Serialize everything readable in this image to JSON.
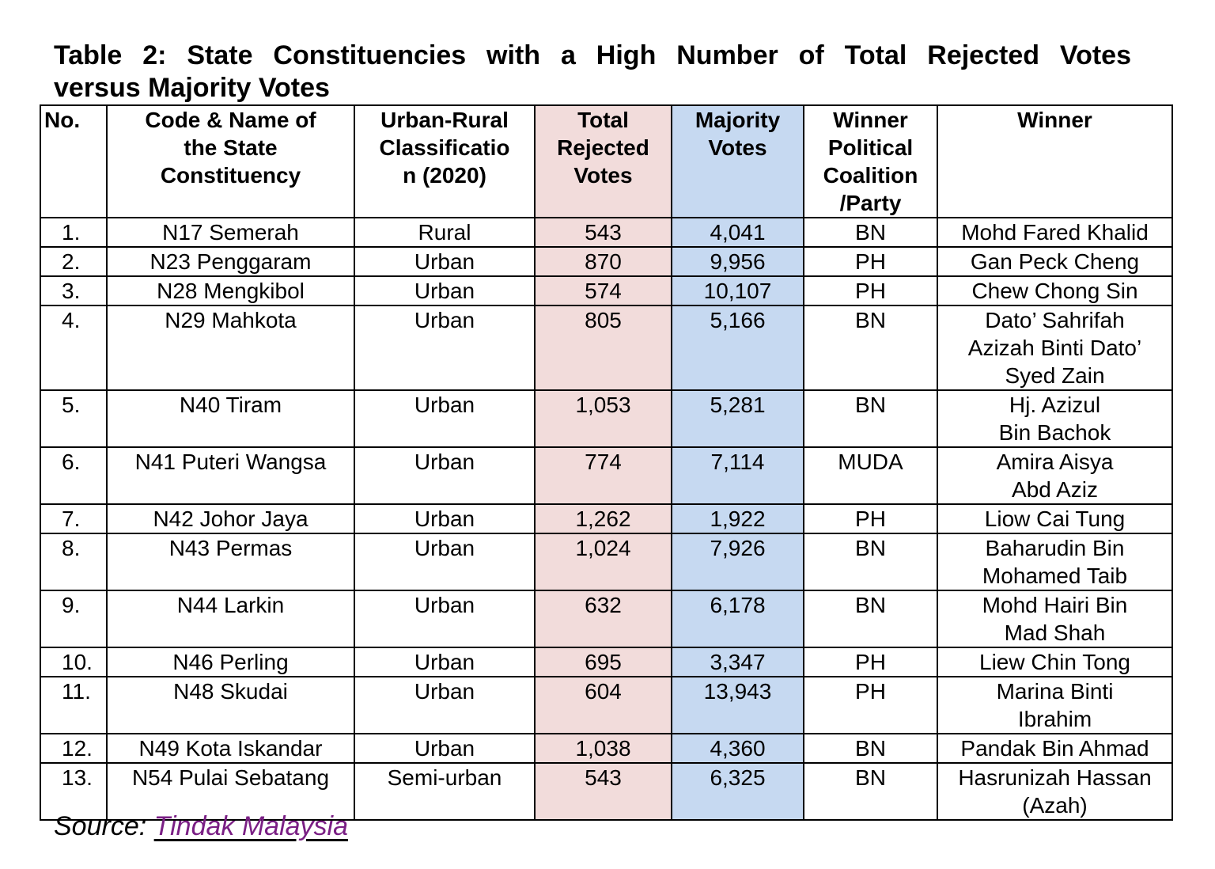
{
  "title_line1": "Table 2: State Constituencies with a High Number of Total Rejected Votes",
  "title_line2": "versus Majority Votes",
  "colors": {
    "rejected_column": "#f2dcdb",
    "majority_column": "#c6d9f1",
    "link": "#7a1f84"
  },
  "headers": [
    "No.",
    "Code & Name of\nthe State\nConstituency",
    "Urban-Rural\nClassificatio\nn (2020)",
    "Total\nRejected\nVotes",
    "Majority\nVotes",
    "Winner\nPolitical\nCoalition\n/Party",
    "Winner"
  ],
  "rows": [
    [
      "1.",
      "N17 Semerah",
      "Rural",
      "543",
      "4,041",
      "BN",
      "Mohd Fared Khalid"
    ],
    [
      "2.",
      "N23 Penggaram",
      "Urban",
      "870",
      "9,956",
      "PH",
      "Gan Peck Cheng"
    ],
    [
      "3.",
      "N28 Mengkibol",
      "Urban",
      "574",
      "10,107",
      "PH",
      "Chew Chong Sin"
    ],
    [
      "4.",
      "N29 Mahkota",
      "Urban",
      "805",
      "5,166",
      "BN",
      "Dato’ Sahrifah\nAzizah Binti Dato’\nSyed Zain"
    ],
    [
      "5.",
      "N40 Tiram",
      "Urban",
      "1,053",
      "5,281",
      "BN",
      "Hj. Azizul\nBin Bachok"
    ],
    [
      "6.",
      "N41 Puteri Wangsa",
      "Urban",
      "774",
      "7,114",
      "MUDA",
      "Amira Aisya\nAbd Aziz"
    ],
    [
      "7.",
      "N42 Johor Jaya",
      "Urban",
      "1,262",
      "1,922",
      "PH",
      "Liow Cai Tung"
    ],
    [
      "8.",
      "N43 Permas",
      "Urban",
      "1,024",
      "7,926",
      "BN",
      "Baharudin Bin\nMohamed Taib"
    ],
    [
      "9.",
      "N44 Larkin",
      "Urban",
      "632",
      "6,178",
      "BN",
      "Mohd Hairi Bin\nMad Shah"
    ],
    [
      "10.",
      "N46 Perling",
      "Urban",
      "695",
      "3,347",
      "PH",
      "Liew Chin Tong"
    ],
    [
      "11.",
      "N48 Skudai",
      "Urban",
      "604",
      "13,943",
      "PH",
      "Marina Binti\nIbrahim"
    ],
    [
      "12.",
      "N49 Kota Iskandar",
      "Urban",
      "1,038",
      "4,360",
      "BN",
      "Pandak Bin Ahmad"
    ],
    [
      "13.",
      "N54 Pulai Sebatang",
      "Semi-urban",
      "543",
      "6,325",
      "BN",
      "Hasrunizah Hassan\n(Azah)"
    ]
  ],
  "source_label": "Source:",
  "source_link": "Tindak Malaysia"
}
